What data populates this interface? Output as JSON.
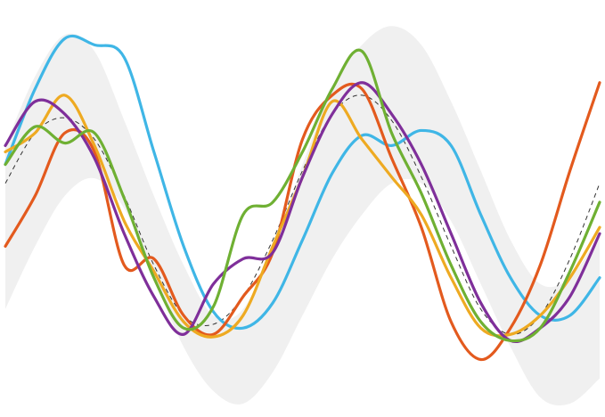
{
  "chart_data": {
    "type": "line",
    "title": "",
    "xlabel": "",
    "ylabel": "",
    "grid": false,
    "legend": "none",
    "xlim": [
      0,
      10
    ],
    "ylim": [
      -1.6,
      1.6
    ],
    "band": {
      "color": "#f0f0f0",
      "x": [
        0,
        0.5,
        1,
        1.5,
        2,
        2.5,
        3,
        3.5,
        4,
        4.5,
        5,
        5.5,
        6,
        6.5,
        7,
        7.5,
        8,
        8.5,
        9,
        9.5,
        10
      ],
      "lower": [
        -0.8,
        -0.3,
        0.1,
        0.24,
        0.0,
        -0.55,
        -1.1,
        -1.45,
        -1.55,
        -1.3,
        -0.85,
        -0.4,
        -0.05,
        0.2,
        0.2,
        -0.1,
        -0.6,
        -1.1,
        -1.5,
        -1.55,
        -1.35
      ],
      "upper": [
        0.5,
        1.05,
        1.38,
        1.25,
        0.7,
        0.1,
        -0.45,
        -0.85,
        -0.8,
        -0.3,
        0.35,
        0.95,
        1.3,
        1.45,
        1.3,
        0.85,
        0.3,
        -0.25,
        -0.6,
        -0.55,
        -0.2
      ]
    },
    "mean": {
      "color": "#333333",
      "x": [
        0,
        0.5,
        1,
        1.5,
        2,
        2.5,
        3,
        3.5,
        4,
        4.5,
        5,
        5.5,
        6,
        6.5,
        7,
        7.5,
        8,
        8.5,
        9,
        9.5,
        10
      ],
      "values": [
        0.2,
        0.6,
        0.72,
        0.55,
        0.1,
        -0.45,
        -0.85,
        -0.92,
        -0.7,
        -0.25,
        0.3,
        0.75,
        0.9,
        0.7,
        0.25,
        -0.3,
        -0.8,
        -1.0,
        -0.85,
        -0.4,
        0.2
      ]
    },
    "x": [
      0,
      0.5,
      1,
      1.5,
      2,
      2.5,
      3,
      3.5,
      4,
      4.5,
      5,
      5.5,
      6,
      6.5,
      7,
      7.5,
      8,
      8.5,
      9,
      9.5,
      10
    ],
    "series": [
      {
        "color": "#3fb6e6",
        "values": [
          0.35,
          0.95,
          1.35,
          1.3,
          1.2,
          0.45,
          -0.3,
          -0.82,
          -0.95,
          -0.75,
          -0.25,
          0.28,
          0.58,
          0.5,
          0.62,
          0.5,
          -0.05,
          -0.55,
          -0.85,
          -0.85,
          -0.55
        ]
      },
      {
        "color": "#e35a1e",
        "values": [
          -0.3,
          0.1,
          0.6,
          0.45,
          -0.45,
          -0.4,
          -0.85,
          -1.0,
          -0.7,
          -0.35,
          0.55,
          0.9,
          0.95,
          0.4,
          -0.15,
          -0.9,
          -1.2,
          -0.95,
          -0.45,
          0.3,
          1.0
        ]
      },
      {
        "color": "#eeaa22",
        "values": [
          0.45,
          0.6,
          0.9,
          0.5,
          -0.1,
          -0.5,
          -0.9,
          -1.02,
          -0.85,
          -0.3,
          0.25,
          0.85,
          0.55,
          0.25,
          -0.05,
          -0.55,
          -0.95,
          -1.0,
          -0.85,
          -0.55,
          -0.15
        ]
      },
      {
        "color": "#7f2f9a",
        "values": [
          0.5,
          0.85,
          0.75,
          0.4,
          -0.2,
          -0.7,
          -1.0,
          -0.6,
          -0.4,
          -0.35,
          0.25,
          0.75,
          1.0,
          0.75,
          0.35,
          -0.2,
          -0.75,
          -1.05,
          -0.95,
          -0.7,
          -0.2
        ]
      },
      {
        "color": "#6fb033",
        "values": [
          0.35,
          0.65,
          0.52,
          0.6,
          0.08,
          -0.55,
          -0.95,
          -0.78,
          -0.05,
          0.05,
          0.45,
          0.95,
          1.25,
          0.6,
          0.12,
          -0.45,
          -0.9,
          -1.05,
          -0.95,
          -0.5,
          0.05
        ]
      }
    ]
  }
}
